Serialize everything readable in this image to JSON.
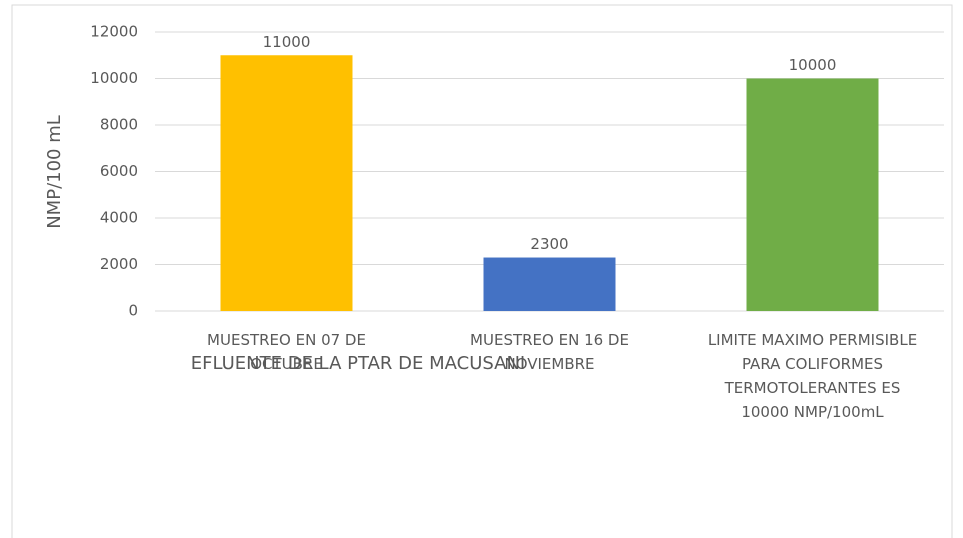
{
  "chart_data": {
    "type": "bar",
    "categories": [
      "MUESTREO EN 07 DE OCTUBRE",
      "MUESTREO EN 16 DE NOVIEMBRE",
      "LIMITE MAXIMO PERMISIBLE PARA COLIFORMES TERMOTOLERANTES ES 10000 NMP/100mL"
    ],
    "values": [
      11000,
      2300,
      10000
    ],
    "colors": [
      "#ffc000",
      "#4472c4",
      "#70ad47"
    ],
    "x_label": "EFLUENTE DE LA PTAR DE MACUSANI",
    "y_label": "NMP/100 mL",
    "ylim": [
      0,
      12000
    ],
    "yticks": [
      0,
      2000,
      4000,
      6000,
      8000,
      10000,
      12000
    ],
    "grid": true
  }
}
